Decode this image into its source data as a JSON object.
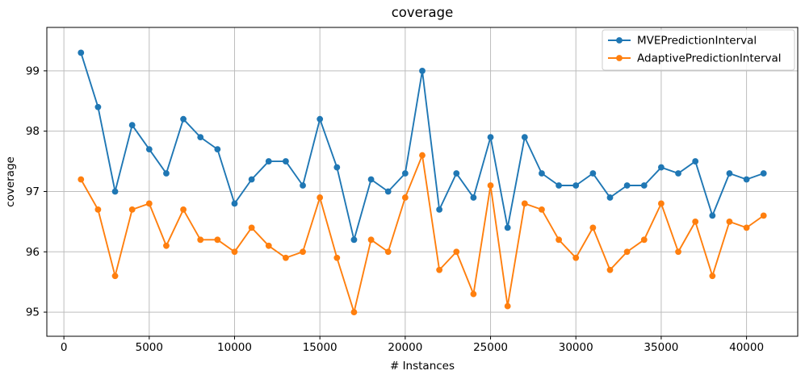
{
  "figure": {
    "title": "coverage",
    "xlabel": "# Instances",
    "ylabel": "coverage"
  },
  "chart_data": {
    "type": "line",
    "title": "coverage",
    "xlabel": "# Instances",
    "ylabel": "coverage",
    "x": [
      1000,
      2000,
      3000,
      4000,
      5000,
      6000,
      7000,
      8000,
      9000,
      10000,
      11000,
      12000,
      13000,
      14000,
      15000,
      16000,
      17000,
      18000,
      19000,
      20000,
      21000,
      22000,
      23000,
      24000,
      25000,
      26000,
      27000,
      28000,
      29000,
      30000,
      31000,
      32000,
      33000,
      34000,
      35000,
      36000,
      37000,
      38000,
      39000,
      40000,
      41000
    ],
    "series": [
      {
        "name": "MVEPredictionInterval",
        "color": "#1f77b4",
        "values": [
          99.3,
          98.4,
          97.0,
          98.1,
          97.7,
          97.3,
          98.2,
          97.9,
          97.7,
          96.8,
          97.2,
          97.5,
          97.5,
          97.1,
          98.2,
          97.4,
          96.2,
          97.2,
          97.0,
          97.3,
          99.0,
          96.7,
          97.3,
          96.9,
          97.9,
          96.4,
          97.9,
          97.3,
          97.1,
          97.1,
          97.3,
          96.9,
          97.1,
          97.1,
          97.4,
          97.3,
          97.5,
          96.6,
          97.3,
          97.2,
          97.3
        ]
      },
      {
        "name": "AdaptivePredictionInterval",
        "color": "#ff7f0e",
        "values": [
          97.2,
          96.7,
          95.6,
          96.7,
          96.8,
          96.1,
          96.7,
          96.2,
          96.2,
          96.0,
          96.4,
          96.1,
          95.9,
          96.0,
          96.9,
          95.9,
          95.0,
          96.2,
          96.0,
          96.9,
          97.6,
          95.7,
          96.0,
          95.3,
          97.1,
          95.1,
          96.8,
          96.7,
          96.2,
          95.9,
          96.4,
          95.7,
          96.0,
          96.2,
          96.8,
          96.0,
          96.5,
          95.6,
          96.5,
          96.4,
          96.6
        ]
      }
    ],
    "xlim": [
      -1000,
      43000
    ],
    "ylim": [
      94.6,
      99.72
    ],
    "xticks": [
      0,
      5000,
      10000,
      15000,
      20000,
      25000,
      30000,
      35000,
      40000
    ],
    "yticks": [
      95,
      96,
      97,
      98,
      99
    ],
    "grid": true,
    "legend_position": "upper right",
    "grid_color": "#bdbdbd",
    "spine_color": "#000000"
  }
}
